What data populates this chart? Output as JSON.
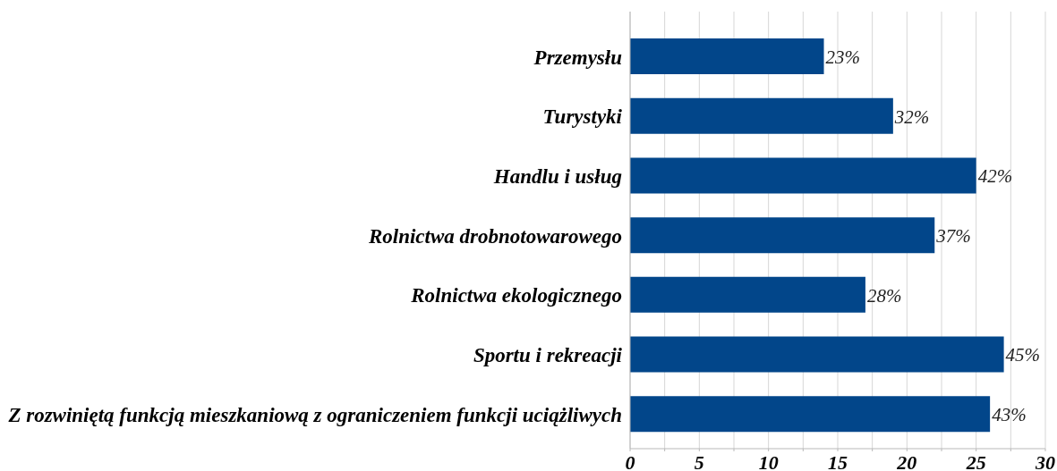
{
  "chart_data": {
    "type": "bar",
    "orientation": "horizontal",
    "categories": [
      "Przemysłu",
      "Turystyki",
      "Handlu i usług",
      "Rolnictwa drobnotowarowego",
      "Rolnictwa ekologicznego",
      "Sportu i rekreacji",
      "Z rozwiniętą funkcją mieszkaniową z ograniczeniem funkcji uciążliwych"
    ],
    "values": [
      14,
      19,
      25,
      22,
      17,
      27,
      26
    ],
    "color": "#02468a",
    "annotations": [
      {
        "text": "23%",
        "x": 14,
        "y": "Przemysłu"
      },
      {
        "text": "32%",
        "x": 19,
        "y": "Turystyki"
      },
      {
        "text": "42%",
        "x": 25,
        "y": "Handlu i usług"
      },
      {
        "text": "37%",
        "x": 22,
        "y": "Rolnictwa drobnotowarowego"
      },
      {
        "text": "28%",
        "x": 17,
        "y": "Rolnictwa ekologicznego"
      },
      {
        "text": "45%",
        "x": 27,
        "y": "Sportu i rekreacji"
      },
      {
        "text": "43%",
        "x": 26,
        "y": "Z rozwiniętą funkcją mieszkaniową z ograniczeniem funkcji uciążliwych"
      }
    ],
    "xlim": [
      0,
      30
    ],
    "xticks": [
      0,
      {
        "value": 2.5,
        "label": null
      },
      5,
      {
        "value": 7.5,
        "label": null
      },
      10,
      {
        "value": 12.5,
        "label": null
      },
      15,
      {
        "value": 17.5,
        "label": null
      },
      20,
      {
        "value": 22.5,
        "label": null
      },
      25,
      {
        "value": 27.5,
        "label": null
      },
      30
    ],
    "grid": "x"
  }
}
